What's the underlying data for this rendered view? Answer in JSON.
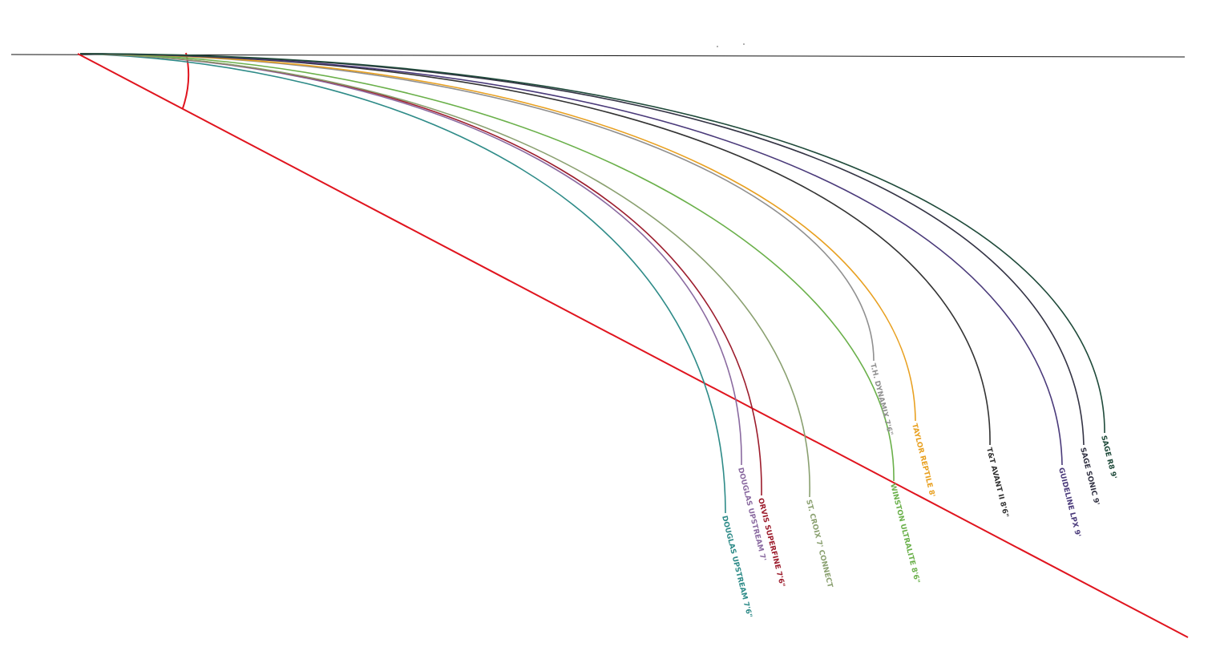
{
  "curves": [
    {
      "label": "Douglas Upstream 7'6\""
    },
    {
      "label": "Douglas Upstream 7'"
    },
    {
      "label": "Orvis Superfine 7'6\""
    },
    {
      "label": "St. Croix 7' Connect"
    },
    {
      "label": "Winston Ultralite 8'6\""
    },
    {
      "label": "T.H. Dynamix 7'6\""
    },
    {
      "label": "Taylor Reptile 8'"
    },
    {
      "label": "T&T Avant II 8'6\""
    },
    {
      "label": "Guideline LPX 9'"
    },
    {
      "label": "Sage Sonic 9'"
    },
    {
      "label": "Sage R8 9'"
    }
  ]
}
